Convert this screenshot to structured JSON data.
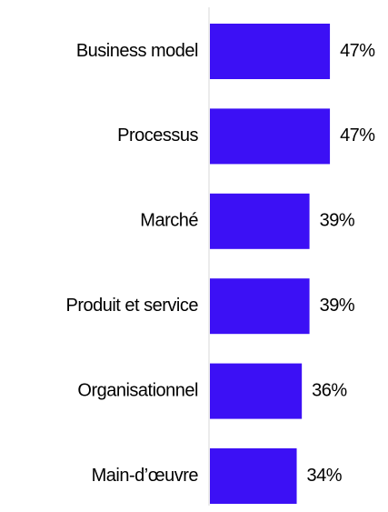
{
  "chart_data": {
    "type": "bar",
    "orientation": "horizontal",
    "categories": [
      "Business model",
      "Processus",
      "Marché",
      "Produit et service",
      "Organisationnel",
      "Main-d’œuvre"
    ],
    "values": [
      47,
      47,
      39,
      39,
      36,
      34
    ],
    "value_labels": [
      "47%",
      "47%",
      "39%",
      "39%",
      "36%",
      "34%"
    ],
    "color": "#3c10f5"
  }
}
